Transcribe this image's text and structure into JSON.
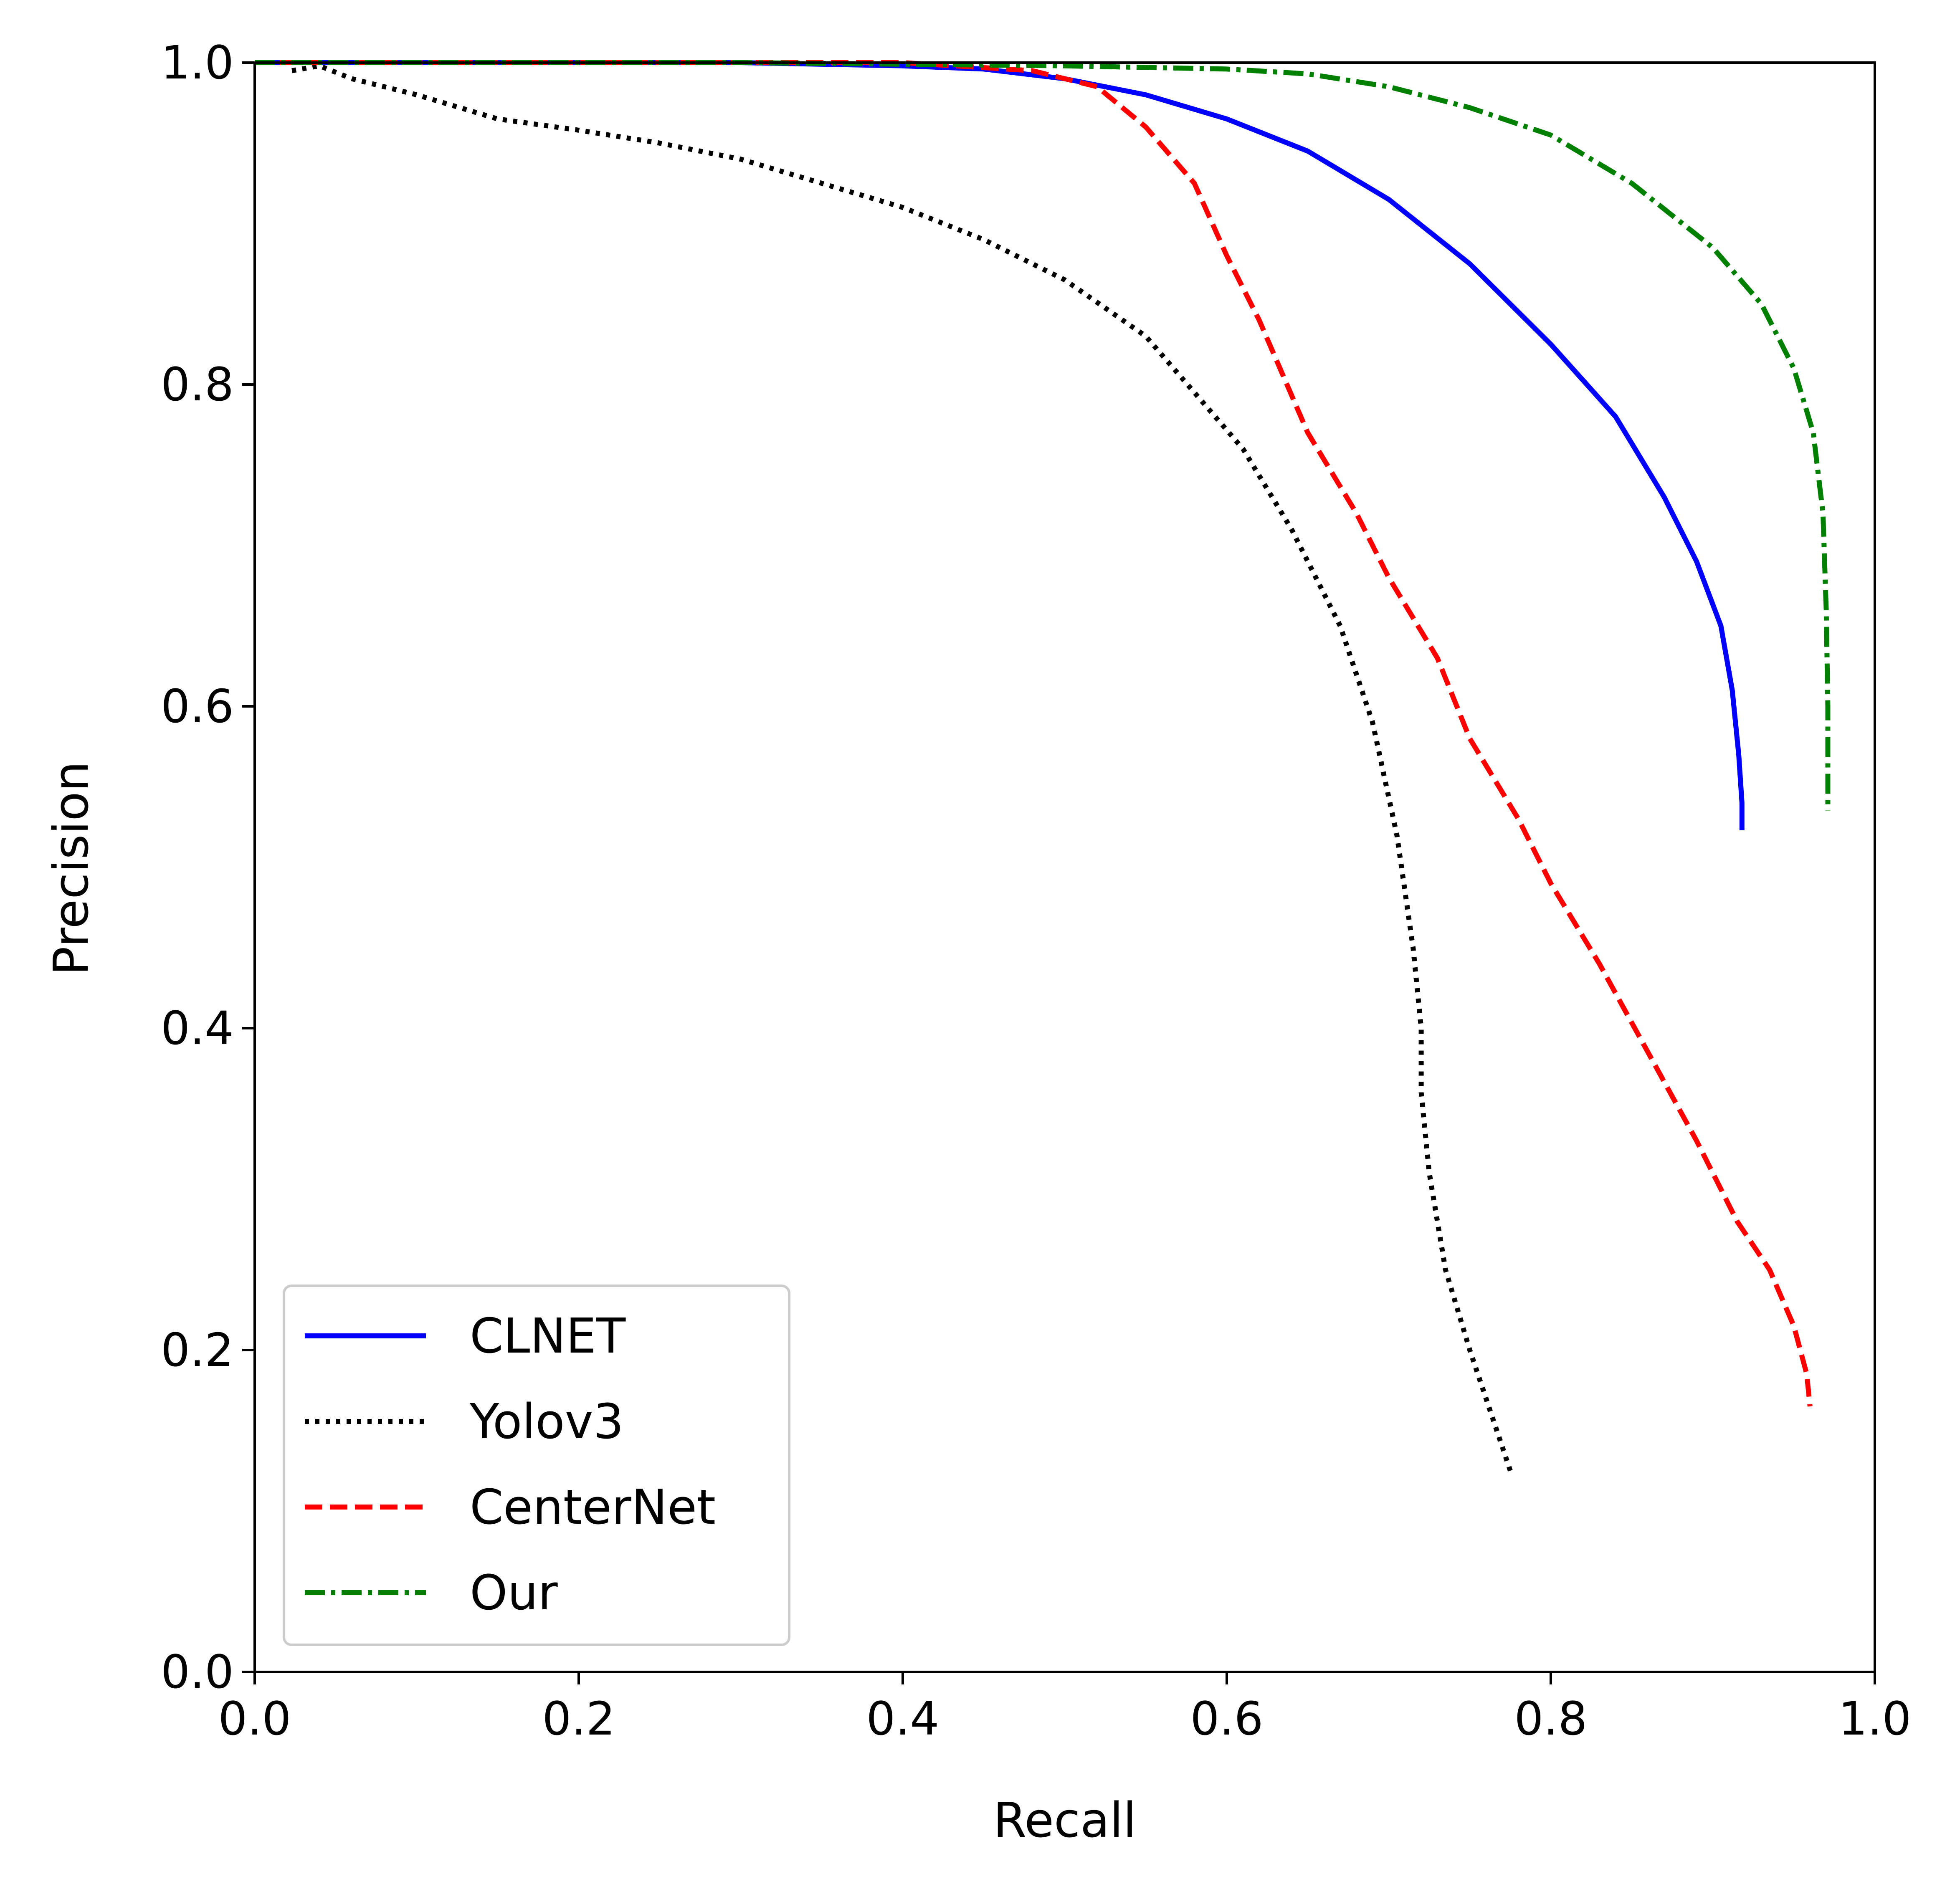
{
  "chart_data": {
    "type": "line",
    "xlabel": "Recall",
    "ylabel": "Precision",
    "xlim": [
      0.0,
      1.0
    ],
    "ylim": [
      0.0,
      1.0
    ],
    "xticks": [
      "0.0",
      "0.2",
      "0.4",
      "0.6",
      "0.8",
      "1.0"
    ],
    "yticks": [
      "0.0",
      "0.2",
      "0.4",
      "0.6",
      "0.8",
      "1.0"
    ],
    "grid": false,
    "legend_position": "lower-left",
    "series": [
      {
        "name": "CLNET",
        "color": "#0000ff",
        "style": "solid",
        "points": [
          [
            0.0,
            1.0
          ],
          [
            0.1,
            1.0
          ],
          [
            0.2,
            1.0
          ],
          [
            0.3,
            1.0
          ],
          [
            0.4,
            0.998
          ],
          [
            0.45,
            0.996
          ],
          [
            0.5,
            0.99
          ],
          [
            0.55,
            0.98
          ],
          [
            0.6,
            0.965
          ],
          [
            0.65,
            0.945
          ],
          [
            0.7,
            0.915
          ],
          [
            0.75,
            0.875
          ],
          [
            0.8,
            0.825
          ],
          [
            0.84,
            0.78
          ],
          [
            0.87,
            0.73
          ],
          [
            0.89,
            0.69
          ],
          [
            0.905,
            0.65
          ],
          [
            0.912,
            0.61
          ],
          [
            0.916,
            0.57
          ],
          [
            0.918,
            0.54
          ],
          [
            0.918,
            0.523
          ]
        ]
      },
      {
        "name": "Yolov3",
        "color": "#000000",
        "style": "dotted",
        "points": [
          [
            0.023,
            0.995
          ],
          [
            0.04,
            0.998
          ],
          [
            0.06,
            0.99
          ],
          [
            0.1,
            0.98
          ],
          [
            0.15,
            0.965
          ],
          [
            0.2,
            0.958
          ],
          [
            0.25,
            0.95
          ],
          [
            0.3,
            0.94
          ],
          [
            0.35,
            0.925
          ],
          [
            0.4,
            0.91
          ],
          [
            0.45,
            0.89
          ],
          [
            0.5,
            0.865
          ],
          [
            0.55,
            0.83
          ],
          [
            0.58,
            0.795
          ],
          [
            0.61,
            0.76
          ],
          [
            0.64,
            0.71
          ],
          [
            0.67,
            0.65
          ],
          [
            0.69,
            0.59
          ],
          [
            0.705,
            0.52
          ],
          [
            0.715,
            0.45
          ],
          [
            0.72,
            0.4
          ],
          [
            0.72,
            0.36
          ],
          [
            0.725,
            0.31
          ],
          [
            0.735,
            0.25
          ],
          [
            0.75,
            0.2
          ],
          [
            0.765,
            0.155
          ],
          [
            0.775,
            0.125
          ]
        ]
      },
      {
        "name": "CenterNet",
        "color": "#ff0000",
        "style": "dashed",
        "points": [
          [
            0.0,
            1.0
          ],
          [
            0.2,
            1.0
          ],
          [
            0.4,
            1.0
          ],
          [
            0.48,
            0.995
          ],
          [
            0.52,
            0.985
          ],
          [
            0.55,
            0.96
          ],
          [
            0.58,
            0.925
          ],
          [
            0.6,
            0.88
          ],
          [
            0.62,
            0.84
          ],
          [
            0.65,
            0.77
          ],
          [
            0.68,
            0.72
          ],
          [
            0.7,
            0.68
          ],
          [
            0.73,
            0.63
          ],
          [
            0.75,
            0.58
          ],
          [
            0.78,
            0.53
          ],
          [
            0.8,
            0.49
          ],
          [
            0.83,
            0.44
          ],
          [
            0.86,
            0.385
          ],
          [
            0.89,
            0.33
          ],
          [
            0.915,
            0.28
          ],
          [
            0.935,
            0.25
          ],
          [
            0.95,
            0.215
          ],
          [
            0.958,
            0.185
          ],
          [
            0.96,
            0.165
          ]
        ]
      },
      {
        "name": "Our",
        "color": "#008000",
        "style": "dashdot",
        "points": [
          [
            0.0,
            1.0
          ],
          [
            0.3,
            1.0
          ],
          [
            0.5,
            0.998
          ],
          [
            0.6,
            0.996
          ],
          [
            0.65,
            0.993
          ],
          [
            0.7,
            0.985
          ],
          [
            0.75,
            0.972
          ],
          [
            0.8,
            0.955
          ],
          [
            0.85,
            0.925
          ],
          [
            0.9,
            0.885
          ],
          [
            0.93,
            0.85
          ],
          [
            0.95,
            0.81
          ],
          [
            0.962,
            0.77
          ],
          [
            0.968,
            0.72
          ],
          [
            0.97,
            0.66
          ],
          [
            0.971,
            0.6
          ],
          [
            0.971,
            0.535
          ]
        ]
      }
    ]
  }
}
